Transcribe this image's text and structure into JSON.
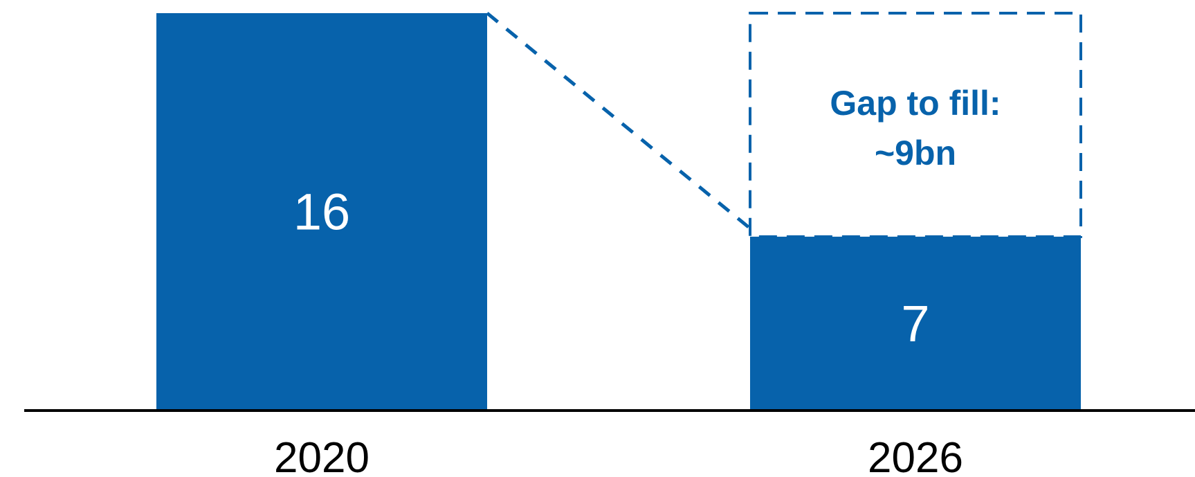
{
  "chart_data": {
    "type": "bar",
    "categories": [
      "2020",
      "2026"
    ],
    "values": [
      16,
      7
    ],
    "value_labels": [
      "16",
      "7"
    ],
    "ylim": [
      0,
      16
    ],
    "title": "",
    "xlabel": "",
    "ylabel": "",
    "grid": false,
    "bar_color": "#0762ab",
    "gap": {
      "value": 9,
      "label_line1": "Gap to fill:",
      "label_line2": "~9bn"
    }
  }
}
